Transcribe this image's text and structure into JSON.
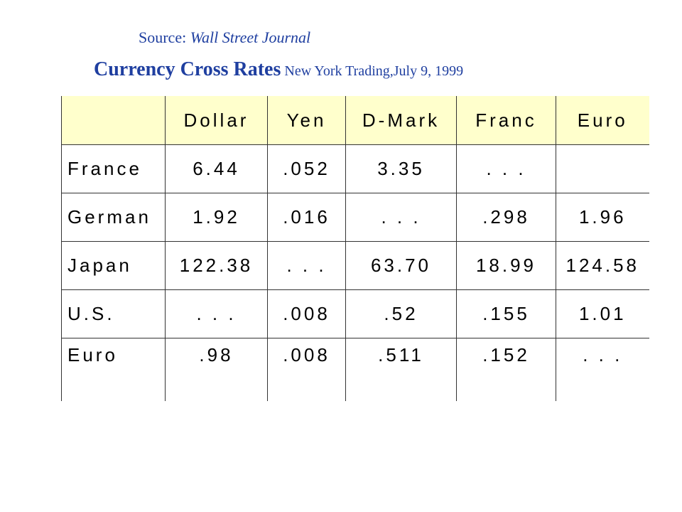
{
  "source": {
    "label": "Source: ",
    "name": "Wall Street Journal"
  },
  "title": {
    "main": "Currency Cross Rates",
    "sub": " New York Trading,July 9, 1999"
  },
  "table": {
    "columns": [
      "",
      "Dollar",
      "Yen",
      "D-Mark",
      "Franc",
      "Euro"
    ],
    "rows": [
      {
        "label": "France",
        "values": [
          "6.44",
          ".052",
          "3.35",
          ". . .",
          ""
        ]
      },
      {
        "label": "German",
        "values": [
          "1.92",
          ".016",
          ". . .",
          ".298",
          "1.96"
        ]
      },
      {
        "label": "Japan",
        "values": [
          "122.38",
          ". . .",
          "63.70",
          "18.99",
          "124.58"
        ]
      },
      {
        "label": "U.S.",
        "values": [
          ". . .",
          ".008",
          ".52",
          ".155",
          "1.01"
        ]
      },
      {
        "label": "Euro",
        "values": [
          ".98",
          ".008",
          ".511",
          ".152",
          ". . ."
        ]
      }
    ]
  }
}
